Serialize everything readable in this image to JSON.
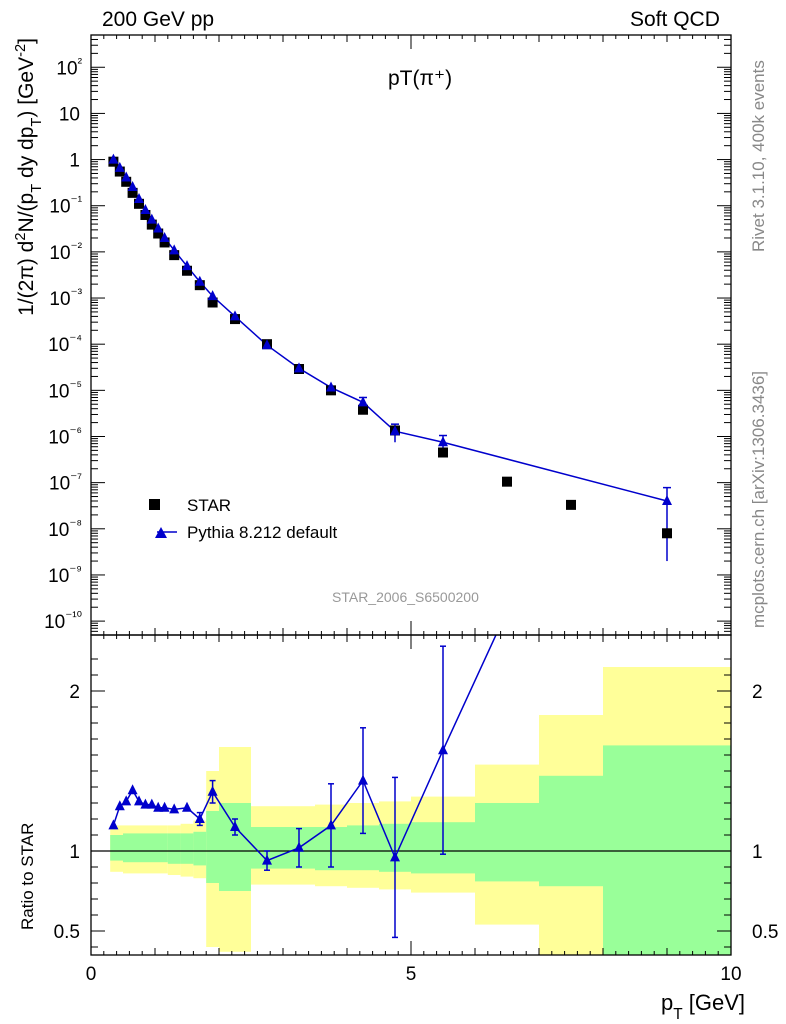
{
  "header": {
    "left": "200 GeV pp",
    "right": "Soft QCD",
    "side_upper": "Rivet 3.1.10,  400k events",
    "side_lower": "mcplots.cern.ch [arXiv:1306.3436]"
  },
  "chart_data": [
    {
      "type": "scatter",
      "title": "pT(π⁺)",
      "xlabel": "",
      "ylabel": "1/(2π) d²N/(p_T dy dp_T) [GeV⁻²]",
      "yscale": "log",
      "xlim": [
        0,
        10
      ],
      "ylim": [
        5e-11,
        500
      ],
      "y_ticks": [
        "10⁻¹⁰",
        "10⁻⁹",
        "10⁻⁸",
        "10⁻⁷",
        "10⁻⁶",
        "10⁻⁵",
        "10⁻⁴",
        "10⁻³",
        "10⁻²",
        "10⁻¹",
        "1",
        "10",
        "10²"
      ],
      "watermark": "STAR_2006_S6500200",
      "legend_position": "bottom-left",
      "series": [
        {
          "name": "STAR",
          "marker": "square",
          "color": "#000000",
          "x": [
            0.35,
            0.45,
            0.55,
            0.65,
            0.75,
            0.85,
            0.95,
            1.05,
            1.15,
            1.3,
            1.5,
            1.7,
            1.9,
            2.25,
            2.75,
            3.25,
            3.75,
            4.25,
            4.75,
            5.5,
            6.5,
            7.5,
            9.0
          ],
          "y": [
            0.9,
            0.55,
            0.33,
            0.19,
            0.11,
            0.063,
            0.039,
            0.025,
            0.016,
            0.0085,
            0.0039,
            0.0019,
            0.0008,
            0.00035,
            0.0001,
            2.9e-05,
            1e-05,
            3.8e-06,
            1.35e-06,
            4.5e-07,
            1.05e-07,
            3.3e-08,
            8e-09
          ]
        },
        {
          "name": "Pythia 8.212 default",
          "marker": "triangle",
          "color": "#0000cc",
          "x": [
            0.35,
            0.45,
            0.55,
            0.65,
            0.75,
            0.85,
            0.95,
            1.05,
            1.15,
            1.3,
            1.5,
            1.7,
            1.9,
            2.25,
            2.75,
            3.25,
            3.75,
            4.25,
            4.75,
            5.5,
            9.0
          ],
          "y": [
            1.0,
            0.66,
            0.41,
            0.255,
            0.14,
            0.081,
            0.05,
            0.032,
            0.02,
            0.0108,
            0.0049,
            0.00225,
            0.0011,
            0.0004,
            9.5e-05,
            3e-05,
            1.15e-05,
            5.5e-06,
            1.3e-06,
            7.5e-07,
            4e-08
          ],
          "yerr": [
            0,
            0,
            0,
            0,
            0,
            0,
            0,
            0,
            0,
            0,
            0,
            0,
            0,
            0,
            0,
            0,
            0,
            1.5e-06,
            5.5e-07,
            3e-07,
            3.8e-08
          ]
        }
      ]
    },
    {
      "type": "line",
      "xlabel": "p_T [GeV]",
      "ylabel": "Ratio to STAR",
      "xlim": [
        0,
        10
      ],
      "ylim": [
        0.35,
        2.35
      ],
      "x_ticks": [
        "0",
        "5",
        "10"
      ],
      "y_ticks": [
        "0.5",
        "1",
        "2"
      ],
      "reference_line": 1,
      "colors": {
        "band_outer": "#ffff99",
        "band_inner": "#99ff99"
      },
      "bands": [
        {
          "x0": 0.3,
          "x1": 0.5,
          "outer": [
            0.87,
            1.16
          ],
          "inner": [
            0.94,
            1.1
          ]
        },
        {
          "x0": 0.5,
          "x1": 1.0,
          "outer": [
            0.86,
            1.16
          ],
          "inner": [
            0.93,
            1.11
          ]
        },
        {
          "x0": 1.0,
          "x1": 1.2,
          "outer": [
            0.86,
            1.16
          ],
          "inner": [
            0.93,
            1.11
          ]
        },
        {
          "x0": 1.2,
          "x1": 1.4,
          "outer": [
            0.85,
            1.16
          ],
          "inner": [
            0.92,
            1.11
          ]
        },
        {
          "x0": 1.4,
          "x1": 1.6,
          "outer": [
            0.84,
            1.17
          ],
          "inner": [
            0.92,
            1.11
          ]
        },
        {
          "x0": 1.6,
          "x1": 1.8,
          "outer": [
            0.83,
            1.19
          ],
          "inner": [
            0.91,
            1.12
          ]
        },
        {
          "x0": 1.8,
          "x1": 2.0,
          "outer": [
            0.4,
            1.5
          ],
          "inner": [
            0.8,
            1.25
          ]
        },
        {
          "x0": 2.0,
          "x1": 2.5,
          "outer": [
            0.37,
            1.65
          ],
          "inner": [
            0.75,
            1.3
          ]
        },
        {
          "x0": 2.5,
          "x1": 3.0,
          "outer": [
            0.79,
            1.28
          ],
          "inner": [
            0.89,
            1.15
          ]
        },
        {
          "x0": 3.0,
          "x1": 3.5,
          "outer": [
            0.79,
            1.28
          ],
          "inner": [
            0.89,
            1.15
          ]
        },
        {
          "x0": 3.5,
          "x1": 4.0,
          "outer": [
            0.78,
            1.29
          ],
          "inner": [
            0.88,
            1.15
          ]
        },
        {
          "x0": 4.0,
          "x1": 4.5,
          "outer": [
            0.77,
            1.3
          ],
          "inner": [
            0.88,
            1.16
          ]
        },
        {
          "x0": 4.5,
          "x1": 5.0,
          "outer": [
            0.76,
            1.31
          ],
          "inner": [
            0.87,
            1.17
          ]
        },
        {
          "x0": 5.0,
          "x1": 6.0,
          "outer": [
            0.74,
            1.34
          ],
          "inner": [
            0.86,
            1.18
          ]
        },
        {
          "x0": 6.0,
          "x1": 7.0,
          "outer": [
            0.54,
            1.54
          ],
          "inner": [
            0.81,
            1.3
          ]
        },
        {
          "x0": 7.0,
          "x1": 8.0,
          "outer": [
            0.35,
            1.85
          ],
          "inner": [
            0.78,
            1.47
          ]
        },
        {
          "x0": 8.0,
          "x1": 10.0,
          "outer": [
            0.35,
            2.15
          ],
          "inner": [
            0.35,
            1.66
          ]
        }
      ],
      "series": [
        {
          "name": "Pythia 8.212 default",
          "color": "#0000cc",
          "x": [
            0.35,
            0.45,
            0.55,
            0.65,
            0.75,
            0.85,
            0.95,
            1.05,
            1.15,
            1.3,
            1.5,
            1.7,
            1.9,
            2.25,
            2.75,
            3.25,
            3.75,
            4.25,
            4.75,
            5.5
          ],
          "y": [
            1.16,
            1.28,
            1.31,
            1.38,
            1.31,
            1.29,
            1.29,
            1.27,
            1.27,
            1.26,
            1.27,
            1.2,
            1.37,
            1.15,
            0.94,
            1.02,
            1.16,
            1.44,
            0.96,
            1.63
          ],
          "yerr": [
            0,
            0,
            0,
            0,
            0,
            0,
            0,
            0,
            0,
            0,
            0,
            0.04,
            0.07,
            0.05,
            0.06,
            0.12,
            0.26,
            0.33,
            0.5,
            0.65
          ]
        }
      ]
    }
  ]
}
